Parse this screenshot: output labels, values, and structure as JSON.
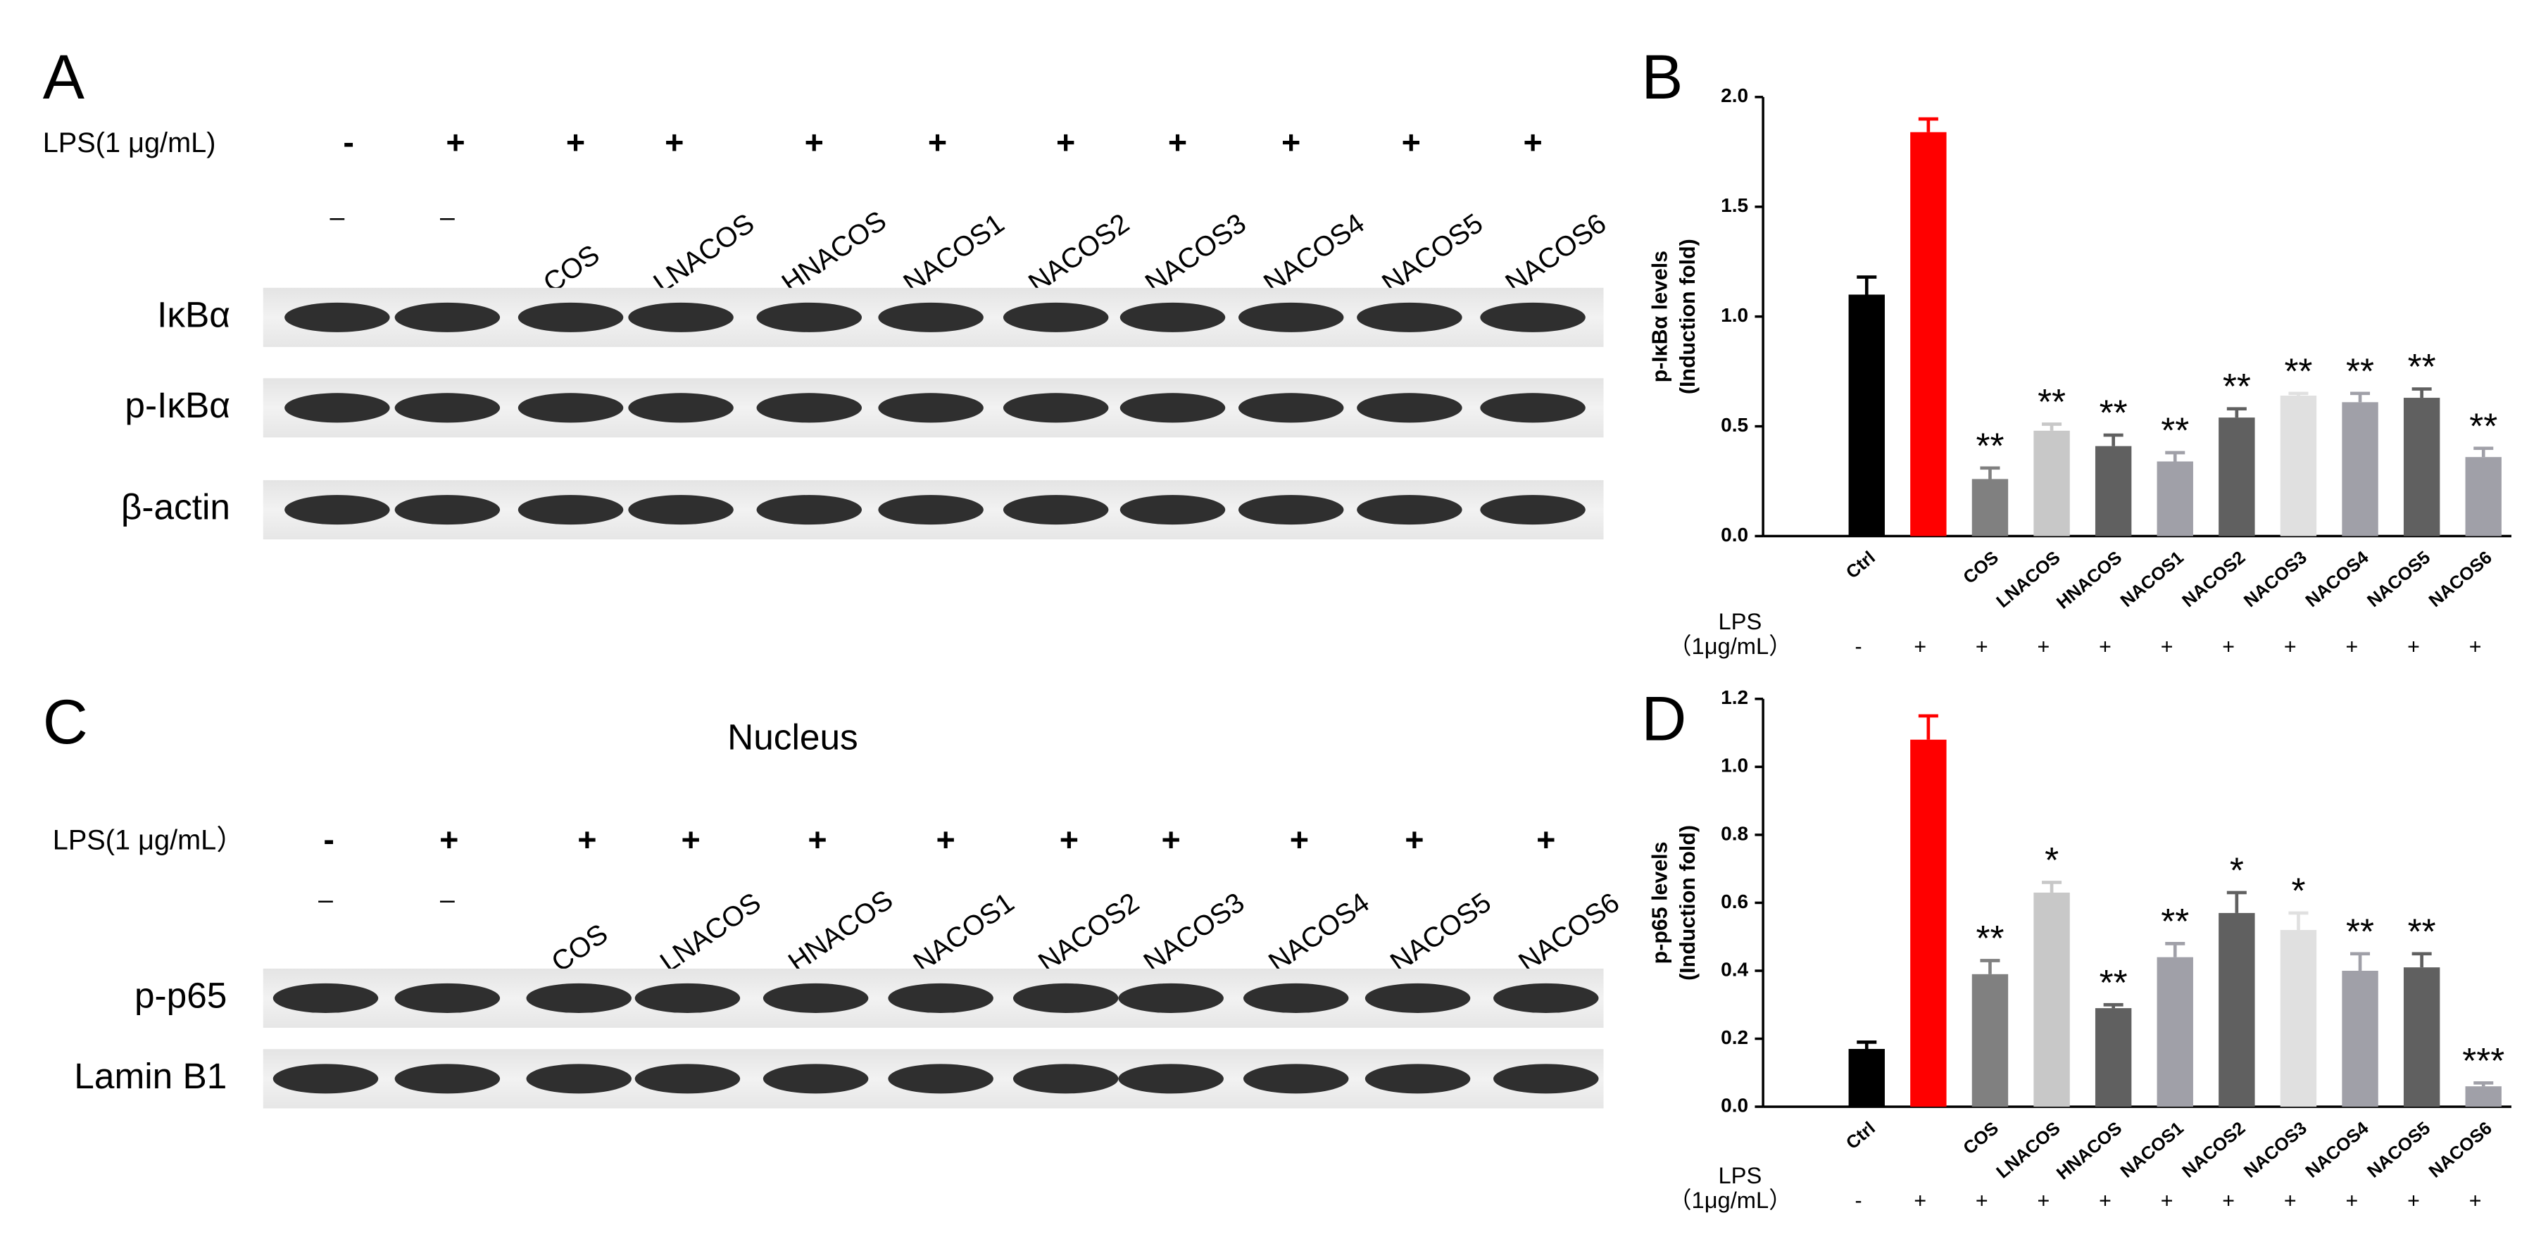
{
  "panel_a": {
    "letter": "A",
    "lps_label": "LPS(1 μg/mL)",
    "signs": [
      "-",
      "+",
      "+",
      "+",
      "+",
      "+",
      "+",
      "+",
      "+",
      "+",
      "+"
    ],
    "lanes": [
      "–",
      "–",
      "COS",
      "LNACOS",
      "HNACOS",
      "NACOS1",
      "NACOS2",
      "NACOS3",
      "NACOS4",
      "NACOS5",
      "NACOS6"
    ],
    "rows": [
      "IκBα",
      "p-IκBα",
      "β-actin"
    ]
  },
  "panel_c": {
    "letter": "C",
    "title": "Nucleus",
    "lps_label": "LPS(1 μg/mL）",
    "signs": [
      "-",
      "+",
      "+",
      "+",
      "+",
      "+",
      "+",
      "+",
      "+",
      "+",
      "+"
    ],
    "lanes": [
      "–",
      "–",
      "COS",
      "LNACOS",
      "HNACOS",
      "NACOS1",
      "NACOS2",
      "NACOS3",
      "NACOS4",
      "NACOS5",
      "NACOS6"
    ],
    "rows": [
      "p-p65",
      "Lamin B1"
    ]
  },
  "chart_data": [
    {
      "type": "bar",
      "letter": "B",
      "ylabel": [
        "p-IκBα levels",
        "(Induction fold)"
      ],
      "categories": [
        "Ctrl",
        null,
        "COS",
        "LNACOS",
        "HNACOS",
        "NACOS1",
        "NACOS2",
        "NACOS3",
        "NACOS4",
        "NACOS5",
        "NACOS6"
      ],
      "values": [
        1.1,
        1.84,
        0.26,
        0.48,
        0.41,
        0.34,
        0.54,
        0.64,
        0.61,
        0.63,
        0.36
      ],
      "errors": [
        0.08,
        0.06,
        0.05,
        0.03,
        0.05,
        0.04,
        0.04,
        0.01,
        0.04,
        0.04,
        0.04
      ],
      "annotations": [
        null,
        null,
        "**",
        "**",
        "**",
        "**",
        "**",
        "**",
        "**",
        "**",
        "**"
      ],
      "colors": [
        "#000000",
        "#ff0000",
        "#808080",
        "#c8c8c8",
        "#606060",
        "#a0a0a8",
        "#606060",
        "#e0e0e0",
        "#a0a0a8",
        "#606060",
        "#a0a0a8"
      ],
      "ylim": [
        0,
        2
      ],
      "yticks": [
        {
          "value": 0,
          "label": "0.0"
        },
        {
          "value": 0.5,
          "label": "0.5"
        },
        {
          "value": 1,
          "label": "1.0"
        },
        {
          "value": 1.5,
          "label": "1.5"
        },
        {
          "value": 2,
          "label": "2.0"
        }
      ],
      "lps_label": [
        "LPS",
        "（1μg/mL）"
      ],
      "lps_signs": [
        "-",
        "+",
        "+",
        "+",
        "+",
        "+",
        "+",
        "+",
        "+",
        "+",
        "+"
      ]
    },
    {
      "type": "bar",
      "letter": "D",
      "ylabel": [
        "p-p65 levels",
        "(Induction fold)"
      ],
      "categories": [
        "Ctrl",
        null,
        "COS",
        "LNACOS",
        "HNACOS",
        "NACOS1",
        "NACOS2",
        "NACOS3",
        "NACOS4",
        "NACOS5",
        "NACOS6"
      ],
      "values": [
        0.17,
        1.08,
        0.39,
        0.63,
        0.29,
        0.44,
        0.57,
        0.52,
        0.4,
        0.41,
        0.06
      ],
      "errors": [
        0.02,
        0.07,
        0.04,
        0.03,
        0.01,
        0.04,
        0.06,
        0.05,
        0.05,
        0.04,
        0.01
      ],
      "annotations": [
        null,
        null,
        "**",
        "*",
        "**",
        "**",
        "*",
        "*",
        "**",
        "**",
        "***"
      ],
      "colors": [
        "#000000",
        "#ff0000",
        "#808080",
        "#c8c8c8",
        "#606060",
        "#a0a0a8",
        "#606060",
        "#e0e0e0",
        "#a0a0a8",
        "#606060",
        "#a0a0a8"
      ],
      "ylim": [
        0,
        1.2
      ],
      "yticks": [
        {
          "value": 0,
          "label": "0.0"
        },
        {
          "value": 0.2,
          "label": "0.2"
        },
        {
          "value": 0.4,
          "label": "0.4"
        },
        {
          "value": 0.6,
          "label": "0.6"
        },
        {
          "value": 0.8,
          "label": "0.8"
        },
        {
          "value": 1,
          "label": "1.0"
        },
        {
          "value": 1.2,
          "label": "1.2"
        }
      ],
      "lps_label": [
        "LPS",
        "（1μg/mL）"
      ],
      "lps_signs": [
        "-",
        "+",
        "+",
        "+",
        "+",
        "+",
        "+",
        "+",
        "+",
        "+",
        "+"
      ]
    }
  ]
}
